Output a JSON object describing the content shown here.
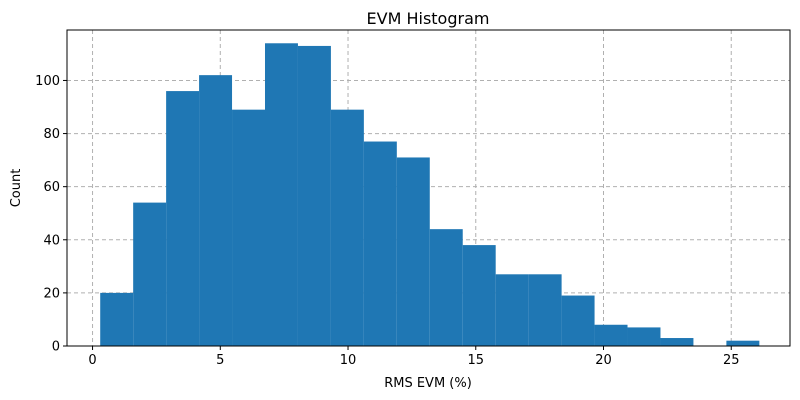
{
  "chart_data": {
    "type": "bar",
    "title": "EVM Histogram",
    "xlabel": "RMS EVM (%)",
    "ylabel": "Count",
    "xlim": [
      -1.0,
      27.3
    ],
    "ylim": [
      0,
      119
    ],
    "x_ticks": [
      0,
      5,
      10,
      15,
      20,
      25
    ],
    "y_ticks": [
      0,
      20,
      40,
      60,
      80,
      100
    ],
    "grid": true,
    "bin_edges": [
      0.3,
      1.59,
      2.88,
      4.17,
      5.46,
      6.75,
      8.04,
      9.33,
      10.62,
      11.91,
      13.2,
      14.49,
      15.78,
      17.07,
      18.36,
      19.65,
      20.94,
      22.23,
      23.52,
      24.81,
      26.1
    ],
    "values": [
      20,
      54,
      96,
      102,
      89,
      114,
      113,
      89,
      77,
      71,
      44,
      38,
      27,
      27,
      19,
      8,
      7,
      3,
      0,
      2
    ],
    "bar_color": "#1f77b4",
    "grid_color": "#b0b0b0"
  }
}
